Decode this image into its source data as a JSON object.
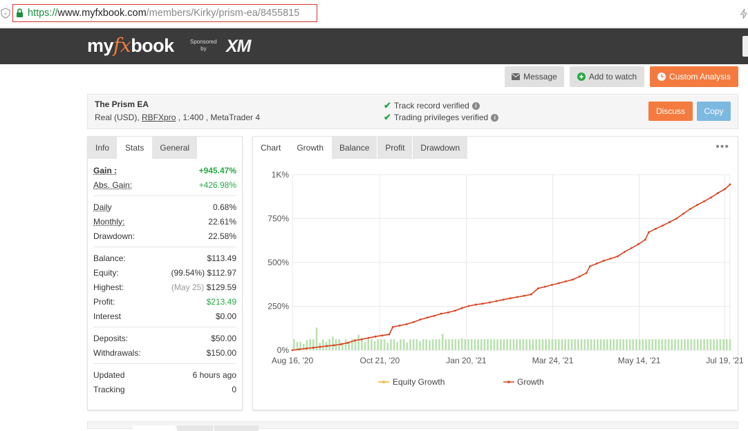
{
  "browser": {
    "url_scheme": "https://",
    "url_domain": "www.myfxbook.com",
    "url_path": "/members/Kirky/prism-ea/8455815"
  },
  "header": {
    "logo_pre": "my",
    "logo_fx": "fx",
    "logo_post": "book",
    "sponsored_line1": "Sponsored",
    "sponsored_line2": "by",
    "sponsor": "XM"
  },
  "actions": {
    "message": "Message",
    "add_to_watch": "Add to watch",
    "custom_analysis": "Custom Analysis"
  },
  "system": {
    "name": "The Prism EA",
    "meta_prefix": "Real (USD), ",
    "broker": "RBFXpro",
    "meta_suffix": " , 1:400 , MetaTrader 4",
    "track_record": "Track record verified",
    "trading_privileges": "Trading privileges verified",
    "discuss": "Discuss",
    "copy": "Copy"
  },
  "stats_tabs": [
    "Info",
    "Stats",
    "General"
  ],
  "stats": {
    "gain_label": "Gain :",
    "gain": "+945.47%",
    "abs_gain_label": "Abs. Gain:",
    "abs_gain": "+426.98%",
    "daily_label": "Daily",
    "daily": "0.68%",
    "monthly_label": "Monthly:",
    "monthly": "22.61%",
    "drawdown_label": "Drawdown:",
    "drawdown": "22.58%",
    "balance_label": "Balance:",
    "balance": "$113.49",
    "equity_label": "Equity:",
    "equity_pct": "(99.54%)",
    "equity": "$112.97",
    "highest_label": "Highest:",
    "highest_date": "(May 25)",
    "highest": "$129.59",
    "profit_label": "Profit:",
    "profit": "$213.49",
    "interest_label": "Interest",
    "interest": "$0.00",
    "deposits_label": "Deposits:",
    "deposits": "$50.00",
    "withdrawals_label": "Withdrawals:",
    "withdrawals": "$150.00",
    "updated_label": "Updated",
    "updated": "6 hours ago",
    "tracking_label": "Tracking",
    "tracking": "0"
  },
  "chart_tabs": [
    "Chart",
    "Growth",
    "Balance",
    "Profit",
    "Drawdown"
  ],
  "colors": {
    "growth": "#d9411e",
    "equity": "#f0b323",
    "volume": "#b9e0b0",
    "orange": "#f47b3f",
    "blue": "#7db8e0",
    "green": "#28a745"
  },
  "chart_data": {
    "type": "line",
    "y_ticks": [
      "1K%",
      "750%",
      "500%",
      "250%",
      "0%"
    ],
    "x_ticks": [
      "Aug 16, '20",
      "Oct 21, '20",
      "Jan 20, '21",
      "Mar 24, '21",
      "May 14, '21",
      "Jul 19, '21"
    ],
    "ylim": [
      0,
      1000
    ],
    "grid": true,
    "legend_position": "bottom",
    "series": [
      {
        "name": "Equity Growth",
        "values": []
      },
      {
        "name": "Growth",
        "points": [
          [
            0,
            0
          ],
          [
            4,
            5
          ],
          [
            8,
            10
          ],
          [
            12,
            14
          ],
          [
            16,
            19
          ],
          [
            20,
            24
          ],
          [
            24,
            28
          ],
          [
            28,
            34
          ],
          [
            32,
            42
          ],
          [
            36,
            55
          ],
          [
            40,
            62
          ],
          [
            44,
            70
          ],
          [
            48,
            78
          ],
          [
            52,
            84
          ],
          [
            56,
            90
          ],
          [
            58,
            132
          ],
          [
            62,
            140
          ],
          [
            66,
            148
          ],
          [
            70,
            160
          ],
          [
            74,
            175
          ],
          [
            78,
            186
          ],
          [
            82,
            196
          ],
          [
            86,
            208
          ],
          [
            90,
            215
          ],
          [
            94,
            225
          ],
          [
            98,
            240
          ],
          [
            102,
            252
          ],
          [
            106,
            260
          ],
          [
            110,
            265
          ],
          [
            114,
            272
          ],
          [
            118,
            280
          ],
          [
            122,
            288
          ],
          [
            126,
            296
          ],
          [
            130,
            303
          ],
          [
            134,
            310
          ],
          [
            138,
            318
          ],
          [
            142,
            352
          ],
          [
            146,
            362
          ],
          [
            150,
            372
          ],
          [
            154,
            382
          ],
          [
            158,
            392
          ],
          [
            162,
            402
          ],
          [
            166,
            420
          ],
          [
            170,
            440
          ],
          [
            172,
            478
          ],
          [
            176,
            494
          ],
          [
            180,
            510
          ],
          [
            184,
            522
          ],
          [
            188,
            535
          ],
          [
            192,
            560
          ],
          [
            196,
            582
          ],
          [
            200,
            604
          ],
          [
            204,
            630
          ],
          [
            206,
            672
          ],
          [
            210,
            692
          ],
          [
            214,
            710
          ],
          [
            218,
            730
          ],
          [
            222,
            750
          ],
          [
            226,
            778
          ],
          [
            230,
            805
          ],
          [
            234,
            828
          ],
          [
            238,
            848
          ],
          [
            242,
            870
          ],
          [
            246,
            896
          ],
          [
            250,
            918
          ],
          [
            253,
            945
          ]
        ]
      }
    ],
    "volume_bars": [
      60,
      60,
      30,
      20,
      30,
      60,
      10,
      60,
      50,
      25,
      60,
      30,
      60,
      60,
      190,
      60,
      20,
      60,
      60,
      70,
      30,
      60,
      60,
      40,
      90,
      50,
      60,
      45,
      60,
      60,
      25,
      60,
      60,
      80,
      30,
      60,
      60,
      20,
      60,
      60,
      110,
      40,
      60,
      60,
      30,
      60,
      60,
      25,
      60,
      60,
      40,
      60,
      60,
      30,
      60,
      80,
      60,
      60,
      20,
      60,
      60,
      40,
      60,
      60,
      30,
      60,
      60,
      50,
      60,
      60,
      25,
      60,
      60,
      40,
      60,
      60,
      60,
      60,
      40,
      60,
      60,
      30,
      60,
      60,
      50,
      60,
      60,
      35,
      60,
      60,
      60,
      60,
      120,
      60,
      60,
      40,
      60,
      60,
      60,
      60,
      60,
      60,
      60,
      60,
      70,
      60,
      60,
      40,
      60,
      60,
      60,
      60,
      60,
      60,
      60,
      60,
      60,
      60,
      60,
      60,
      60,
      60,
      60,
      60,
      60,
      60,
      60,
      60,
      60,
      60,
      60,
      60,
      60,
      60,
      60,
      60,
      60,
      60,
      60,
      60,
      60,
      60,
      60,
      60,
      60,
      60,
      60,
      60,
      60,
      60,
      60,
      60,
      60,
      60,
      60,
      60,
      60,
      60,
      60,
      60,
      60,
      60,
      60,
      60,
      60,
      60,
      60,
      60,
      60,
      60,
      60,
      60,
      60,
      60,
      60,
      60,
      60,
      60,
      60,
      60,
      60,
      60,
      60,
      60,
      60,
      60,
      60,
      60,
      60,
      60,
      60,
      60,
      60,
      60,
      60,
      60,
      60,
      60,
      60,
      60,
      60,
      60,
      60,
      60,
      60,
      60,
      60,
      60,
      60,
      60,
      60,
      60,
      60,
      60,
      60,
      60,
      60,
      60,
      60,
      60,
      60,
      60,
      60,
      60,
      60,
      60,
      60,
      60,
      60,
      60,
      60,
      60,
      60,
      60,
      60,
      60,
      60,
      60,
      60,
      60,
      60,
      60,
      60,
      60,
      60,
      60,
      60,
      60,
      60,
      60,
      60,
      60,
      60,
      60,
      60,
      60,
      60,
      60,
      60,
      160,
      60,
      60,
      60,
      60,
      60,
      60,
      60,
      60,
      60,
      60,
      60
    ]
  }
}
